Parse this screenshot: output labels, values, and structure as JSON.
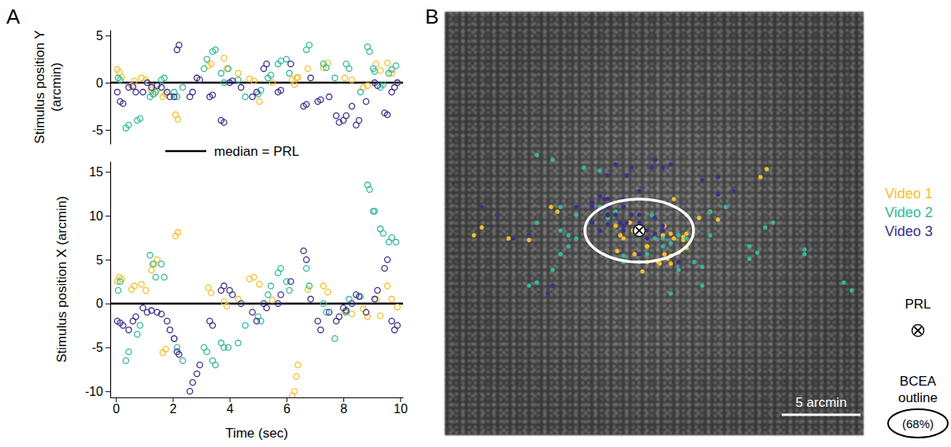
{
  "chart_data": {
    "type": "scatter",
    "series": [
      {
        "name": "Video 1",
        "color": "#f5c02a",
        "t": [
          0.05,
          0.12,
          0.2,
          0.55,
          0.65,
          0.9,
          1.05,
          1.25,
          1.35,
          1.45,
          1.65,
          1.75,
          2.1,
          2.18,
          3.25,
          3.35,
          3.8,
          3.9,
          4.3,
          4.7,
          4.85,
          5.05,
          5.5,
          6.2,
          6.28,
          6.35,
          6.4,
          6.75,
          7.3,
          7.45,
          8.05,
          8.3,
          8.7,
          8.85,
          9.15,
          9.3,
          9.55,
          9.7,
          9.9
        ],
        "x": [
          2.5,
          3.0,
          2.8,
          1.6,
          2.0,
          2.2,
          1.5,
          3.8,
          4.5,
          5.0,
          -5.6,
          -5.2,
          7.7,
          8.1,
          1.8,
          1.2,
          0.2,
          -0.3,
          0.5,
          2.8,
          3.0,
          2.2,
          0.4,
          -10.5,
          -10.0,
          -8.3,
          -7.0,
          1.6,
          2.0,
          1.3,
          -1.0,
          -1.2,
          -0.6,
          -1.5,
          0.5,
          -1.4,
          2.0,
          0.5,
          -0.4
        ],
        "y": [
          1.4,
          1.1,
          0.6,
          -0.3,
          0.2,
          0.5,
          0.3,
          -0.8,
          -1.2,
          -0.7,
          -1.5,
          -1.2,
          -3.4,
          -3.9,
          1.8,
          2.0,
          2.6,
          1.5,
          1.0,
          0.4,
          0.2,
          -2.0,
          0.0,
          0.3,
          -0.2,
          0.5,
          0.6,
          1.5,
          1.6,
          2.1,
          0.5,
          0.3,
          -0.5,
          -0.3,
          2.0,
          1.3,
          2.1,
          1.0,
          0.0
        ]
      },
      {
        "name": "Video 2",
        "color": "#33b89c",
        "t": [
          0.08,
          0.15,
          0.35,
          0.45,
          0.75,
          0.85,
          1.2,
          1.3,
          1.4,
          1.6,
          1.7,
          2.05,
          2.15,
          2.35,
          3.1,
          3.2,
          3.4,
          3.5,
          3.7,
          3.8,
          3.95,
          4.3,
          4.55,
          5.0,
          5.1,
          5.35,
          5.45,
          5.7,
          5.8,
          6.0,
          6.1,
          6.7,
          6.8,
          7.3,
          7.4,
          7.7,
          8.1,
          8.2,
          8.6,
          8.85,
          8.92,
          9.05,
          9.1,
          9.3,
          9.4,
          9.6,
          9.7,
          9.85
        ],
        "x": [
          1.5,
          2.5,
          -6.5,
          -5.5,
          -3.5,
          -2.5,
          5.5,
          4.5,
          3.0,
          4.5,
          3.0,
          -4.0,
          -5.0,
          -6.5,
          -5.0,
          -5.5,
          -6.5,
          -7.0,
          -4.5,
          -5.0,
          -5.0,
          -4.5,
          -2.5,
          -1.5,
          -2.0,
          1.0,
          2.0,
          3.5,
          4.0,
          2.5,
          1.5,
          4.0,
          2.0,
          0.0,
          -1.0,
          -4.0,
          -1.0,
          0.5,
          0.8,
          13.5,
          13.0,
          10.5,
          10.5,
          8.5,
          8.0,
          7.0,
          7.5,
          7.0
        ],
        "y": [
          0.5,
          0.3,
          -4.8,
          -4.5,
          -4.0,
          -3.8,
          -1.5,
          -1.2,
          -1.0,
          0.3,
          0.5,
          -1.0,
          -1.5,
          -0.5,
          1.5,
          2.5,
          3.3,
          3.5,
          1.0,
          0.0,
          1.5,
          0.3,
          -1.5,
          -1.2,
          -0.8,
          0.5,
          0.8,
          2.0,
          2.3,
          2.5,
          1.0,
          3.5,
          4.0,
          2.0,
          1.6,
          0.5,
          2.0,
          1.5,
          -1.0,
          3.8,
          3.3,
          1.5,
          1.2,
          -0.5,
          -0.2,
          1.0,
          1.4,
          1.8
        ]
      },
      {
        "name": "Video 3",
        "color": "#3a2e8c",
        "t": [
          0.05,
          0.15,
          0.25,
          0.45,
          0.6,
          0.7,
          0.95,
          1.1,
          1.25,
          1.45,
          1.6,
          1.8,
          1.9,
          2.05,
          2.15,
          2.22,
          2.6,
          2.7,
          2.85,
          2.95,
          3.3,
          3.4,
          3.7,
          3.8,
          4.0,
          4.1,
          4.4,
          4.8,
          4.95,
          5.2,
          5.3,
          5.7,
          5.8,
          6.15,
          6.6,
          6.7,
          6.85,
          7.1,
          7.2,
          7.5,
          7.75,
          7.85,
          8.0,
          8.1,
          8.3,
          8.45,
          8.55,
          8.8,
          9.1,
          9.2,
          9.45,
          9.55,
          9.7,
          9.8,
          9.9
        ],
        "x": [
          -2.0,
          -2.2,
          -2.5,
          -3.0,
          -2.0,
          -1.5,
          -0.5,
          -1.0,
          -0.8,
          -1.0,
          -1.2,
          -2.0,
          -3.0,
          -4.0,
          -5.5,
          -5.8,
          -10.0,
          -9.0,
          -8.0,
          -7.0,
          -2.0,
          -2.5,
          1.5,
          2.0,
          1.5,
          1.0,
          0.0,
          -1.0,
          -2.0,
          0.0,
          -0.5,
          0.0,
          1.0,
          2.5,
          6.0,
          5.0,
          0.5,
          -2.0,
          -3.0,
          -1.0,
          -2.0,
          -1.5,
          -0.5,
          -0.8,
          0.0,
          1.0,
          0.8,
          -1.0,
          0.5,
          1.5,
          4.0,
          5.0,
          -2.0,
          -3.0,
          -2.5
        ],
        "y": [
          -1.0,
          -2.0,
          -2.2,
          -0.5,
          -0.4,
          -1.0,
          -1.0,
          0.0,
          -0.5,
          -0.3,
          -0.5,
          -1.0,
          -1.5,
          -1.5,
          3.5,
          4.0,
          -1.5,
          -1.0,
          0.5,
          0.3,
          -1.5,
          -1.3,
          -4.0,
          -4.2,
          0.0,
          0.2,
          -0.5,
          -1.5,
          -1.0,
          1.5,
          2.0,
          -1.0,
          -0.8,
          2.0,
          -2.5,
          -2.3,
          0.5,
          -2.0,
          -1.8,
          -1.5,
          -3.5,
          -4.2,
          -4.0,
          -3.5,
          -2.5,
          -4.5,
          -4.0,
          -2.0,
          0.0,
          -0.3,
          -3.2,
          -3.4,
          -1.0,
          -0.5,
          0.0
        ]
      }
    ],
    "median": {
      "label": "median = PRL",
      "value": 0
    },
    "panel_a": {
      "letter": "A",
      "xlabel": "Time (sec)",
      "xlim": [
        -0.2,
        10.1
      ],
      "xticks": [
        0,
        2,
        4,
        6,
        8,
        10
      ],
      "y_panel": {
        "ylabel": "Stimulus position Y (arcmin)",
        "ylim": [
          -6.5,
          5.6
        ],
        "yticks": [
          -5,
          0,
          5
        ],
        "tick_labels": "y"
      },
      "x_panel": {
        "ylabel": "Stimulus position X (arcmin)",
        "ylim": [
          -10.7,
          16.2
        ],
        "yticks": [
          -10,
          -5,
          0,
          5,
          10,
          15
        ]
      }
    },
    "panel_b": {
      "letter": "B",
      "tick_labels": false,
      "xlim": [
        -12.35,
        14.25
      ],
      "ylim": [
        -13.9,
        13.0
      ],
      "prl": {
        "label": "PRL",
        "x": 0,
        "y": 0
      },
      "bcea": {
        "label": "BCEA outline",
        "percent_label": "(68%)",
        "rx": 3.45,
        "ry": 2.0
      },
      "scale_bar": {
        "length": 5,
        "label": "5 arcmin"
      }
    }
  }
}
